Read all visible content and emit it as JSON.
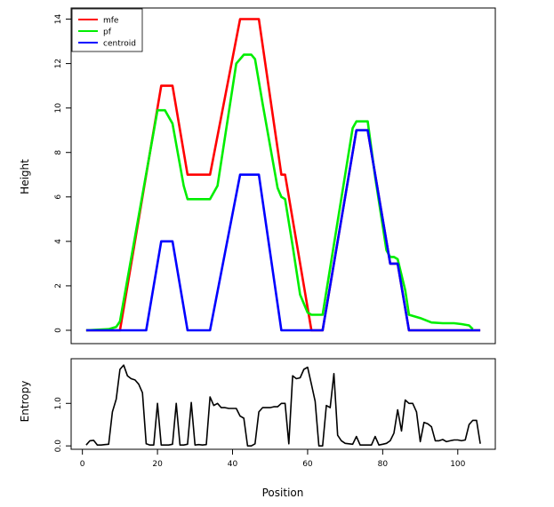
{
  "chart_data": [
    {
      "type": "line",
      "xlabel": "",
      "ylabel": "Height",
      "xlim": [
        -3,
        110
      ],
      "ylim": [
        -0.6,
        14.5
      ],
      "x_ticks": [],
      "y_ticks": [
        0,
        2,
        4,
        6,
        8,
        10,
        12,
        14
      ],
      "y_tick_labels": [
        "0",
        "2",
        "4",
        "6",
        "8",
        "10",
        "12",
        "14"
      ],
      "legend": {
        "position": "top-left"
      },
      "series": [
        {
          "name": "mfe",
          "color": "#ff0000",
          "x": [
            1,
            10,
            21,
            24,
            28,
            34,
            42,
            47,
            53,
            54,
            61,
            62,
            64,
            73,
            76,
            82,
            84,
            87,
            106
          ],
          "y": [
            0,
            0,
            11,
            11,
            7,
            7,
            14,
            14,
            7,
            7,
            0,
            0,
            0,
            9,
            9,
            3,
            3,
            0,
            0
          ]
        },
        {
          "name": "pf",
          "color": "#00ee00",
          "x": [
            1,
            7,
            9,
            10,
            20,
            22,
            24,
            27,
            28,
            29,
            32,
            34,
            36,
            41,
            43,
            45,
            46,
            48,
            52,
            53,
            54,
            56,
            58,
            60,
            61,
            62,
            63,
            64,
            72,
            73,
            75,
            76,
            78,
            81,
            82,
            83,
            84,
            86,
            87,
            90,
            93,
            96,
            99,
            101,
            103,
            104
          ],
          "y": [
            0,
            0.05,
            0.15,
            0.4,
            9.9,
            9.9,
            9.3,
            6.5,
            5.9,
            5.9,
            5.9,
            5.9,
            6.5,
            12,
            12.4,
            12.4,
            12.2,
            10.2,
            6.4,
            6,
            5.9,
            3.8,
            1.6,
            0.8,
            0.7,
            0.7,
            0.7,
            0.7,
            9.1,
            9.4,
            9.4,
            9.4,
            6.9,
            3.6,
            3.3,
            3.3,
            3.2,
            1.8,
            0.7,
            0.55,
            0.35,
            0.32,
            0.32,
            0.28,
            0.22,
            0.05
          ]
        },
        {
          "name": "centroid",
          "color": "#0000ff",
          "x": [
            1,
            17,
            21,
            24,
            28,
            34,
            42,
            47,
            53,
            64,
            73,
            76,
            82,
            84,
            87,
            106
          ],
          "y": [
            0,
            0,
            4,
            4,
            0,
            0,
            7,
            7,
            0,
            0,
            9,
            9,
            3,
            3,
            0,
            0
          ]
        }
      ]
    },
    {
      "type": "line",
      "xlabel": "Position",
      "ylabel": "Entropy",
      "xlim": [
        -3,
        110
      ],
      "ylim": [
        -0.08,
        2.05
      ],
      "x_ticks": [
        0,
        20,
        40,
        60,
        80,
        100
      ],
      "x_tick_labels": [
        "0",
        "20",
        "40",
        "60",
        "80",
        "100"
      ],
      "y_ticks": [
        0,
        1
      ],
      "y_tick_labels": [
        "0.0",
        "1.0"
      ],
      "series": [
        {
          "name": "entropy",
          "color": "#000000",
          "x": [
            1,
            2,
            3,
            4,
            5,
            6,
            7,
            8,
            9,
            10,
            11,
            12,
            13,
            14,
            15,
            16,
            17,
            18,
            19,
            20,
            21,
            22,
            23,
            24,
            25,
            26,
            27,
            28,
            29,
            30,
            31,
            32,
            33,
            34,
            35,
            36,
            37,
            38,
            39,
            40,
            41,
            42,
            43,
            44,
            45,
            46,
            47,
            48,
            49,
            50,
            51,
            52,
            53,
            54,
            55,
            56,
            57,
            58,
            59,
            60,
            61,
            62,
            63,
            64,
            65,
            66,
            67,
            68,
            69,
            70,
            71,
            72,
            73,
            74,
            75,
            76,
            77,
            78,
            79,
            80,
            81,
            82,
            83,
            84,
            85,
            86,
            87,
            88,
            89,
            90,
            91,
            92,
            93,
            94,
            95,
            96,
            97,
            98,
            99,
            100,
            101,
            102,
            103,
            104,
            105,
            106
          ],
          "y": [
            0.02,
            0.12,
            0.13,
            0.02,
            0.02,
            0.03,
            0.04,
            0.8,
            1.1,
            1.8,
            1.9,
            1.65,
            1.58,
            1.55,
            1.45,
            1.25,
            0.05,
            0.02,
            0.02,
            1.0,
            0.02,
            0.02,
            0.02,
            0.04,
            1.0,
            0.02,
            0.02,
            0.04,
            1.02,
            0.02,
            0.03,
            0.02,
            0.03,
            1.15,
            0.95,
            1.0,
            0.9,
            0.9,
            0.88,
            0.88,
            0.88,
            0.7,
            0.65,
            0.0,
            0.0,
            0.05,
            0.8,
            0.9,
            0.9,
            0.9,
            0.92,
            0.92,
            1.0,
            1.0,
            0.05,
            1.65,
            1.58,
            1.6,
            1.8,
            1.85,
            1.45,
            1.05,
            0.0,
            0.0,
            0.95,
            0.9,
            1.7,
            0.25,
            0.12,
            0.06,
            0.05,
            0.04,
            0.22,
            0.02,
            0.02,
            0.02,
            0.02,
            0.22,
            0.02,
            0.04,
            0.06,
            0.12,
            0.3,
            0.85,
            0.35,
            1.08,
            1.0,
            1.0,
            0.8,
            0.1,
            0.55,
            0.52,
            0.45,
            0.12,
            0.12,
            0.15,
            0.1,
            0.12,
            0.14,
            0.14,
            0.12,
            0.14,
            0.5,
            0.6,
            0.6,
            0.05
          ]
        }
      ]
    }
  ]
}
